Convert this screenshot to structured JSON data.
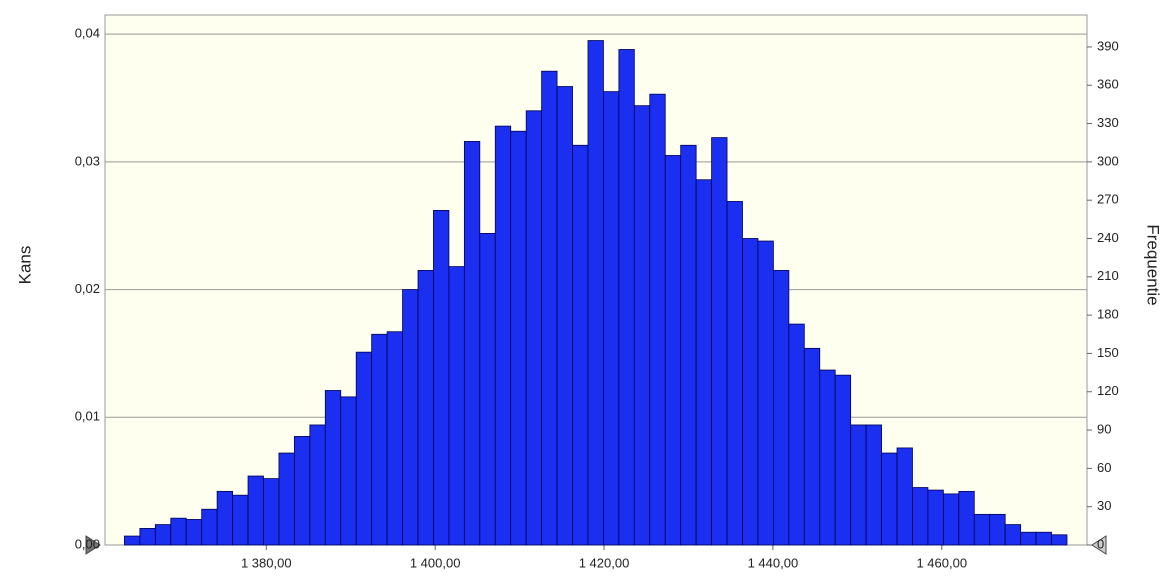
{
  "chart_data": {
    "type": "histogram",
    "y_label": "Kans",
    "y2_label": "Frequentie",
    "bins": [
      1363.2,
      1365.03,
      1366.86,
      1368.69,
      1370.52,
      1372.35,
      1374.18,
      1376.01,
      1377.84,
      1379.67,
      1381.5,
      1383.33,
      1385.16,
      1386.99,
      1388.82,
      1390.65,
      1392.48,
      1394.31,
      1396.14,
      1397.97,
      1399.8,
      1401.63,
      1403.46,
      1405.29,
      1407.12,
      1408.95,
      1410.78,
      1412.61,
      1414.44,
      1416.27,
      1418.1,
      1419.93,
      1421.76,
      1423.59,
      1425.42,
      1427.25,
      1429.08,
      1430.91,
      1432.74,
      1434.57,
      1436.4,
      1438.23,
      1440.06,
      1441.89,
      1443.72,
      1445.55,
      1447.38,
      1449.21,
      1451.04,
      1452.87,
      1454.7,
      1456.53,
      1458.36,
      1460.19,
      1462.02,
      1463.85,
      1465.68,
      1467.51,
      1469.34,
      1471.17,
      1473.0,
      1474.83
    ],
    "series": [
      {
        "axis": "y2",
        "color": "#1a2ff0",
        "values": [
          7,
          13,
          16,
          21,
          20,
          28,
          42,
          39,
          54,
          52,
          72,
          85,
          94,
          121,
          116,
          151,
          165,
          167,
          200,
          215,
          262,
          218,
          316,
          244,
          328,
          324,
          340,
          371,
          359,
          313,
          395,
          355,
          388,
          344,
          353,
          305,
          313,
          286,
          319,
          269,
          240,
          238,
          215,
          173,
          154,
          137,
          133,
          94,
          94,
          72,
          76,
          45,
          43,
          40,
          42,
          24,
          24,
          16,
          10,
          10,
          8
        ]
      }
    ],
    "xlim": [
      1360.9,
      1477.2
    ],
    "xticks": [
      {
        "value": 1380,
        "label": "1 380,00"
      },
      {
        "value": 1400,
        "label": "1 400,00"
      },
      {
        "value": 1420,
        "label": "1 420,00"
      },
      {
        "value": 1440,
        "label": "1 440,00"
      },
      {
        "value": 1460,
        "label": "1 460,00"
      }
    ],
    "ylim": [
      0,
      0.0415
    ],
    "yticks": [
      {
        "value": 0,
        "label": "0,00"
      },
      {
        "value": 0.01,
        "label": "0,01"
      },
      {
        "value": 0.02,
        "label": "0,02"
      },
      {
        "value": 0.03,
        "label": "0,03"
      },
      {
        "value": 0.04,
        "label": "0,04"
      }
    ],
    "y2lim": [
      0,
      415
    ],
    "y2ticks": [
      0,
      30,
      60,
      90,
      120,
      150,
      180,
      210,
      240,
      270,
      300,
      330,
      360,
      390
    ],
    "grid": true
  }
}
